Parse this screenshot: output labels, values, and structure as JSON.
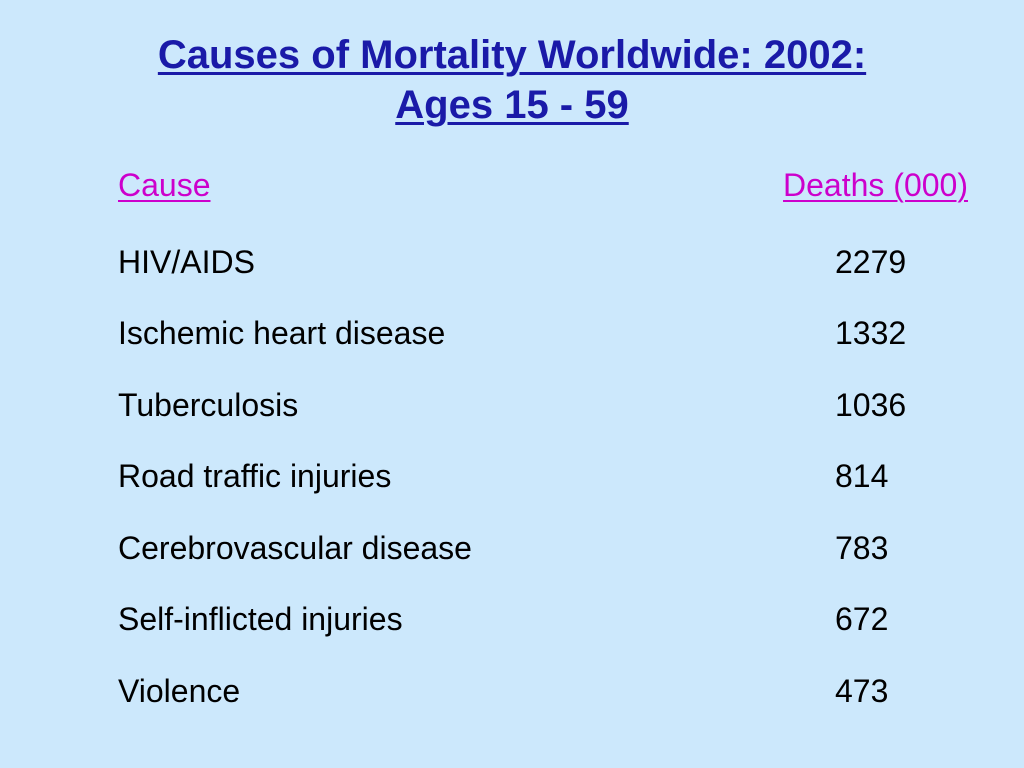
{
  "slide": {
    "title_line1": "Causes of Mortality Worldwide: 2002:",
    "title_line2": "Ages 15 - 59"
  },
  "table": {
    "columns": [
      "Cause",
      "Deaths (000)"
    ],
    "rows": [
      {
        "cause": "HIV/AIDS",
        "deaths": "2279"
      },
      {
        "cause": "Ischemic heart disease",
        "deaths": "1332"
      },
      {
        "cause": "Tuberculosis",
        "deaths": "1036"
      },
      {
        "cause": "Road traffic injuries",
        "deaths": "814"
      },
      {
        "cause": "Cerebrovascular disease",
        "deaths": "783"
      },
      {
        "cause": "Self-inflicted injuries",
        "deaths": "672"
      },
      {
        "cause": "Violence",
        "deaths": "473"
      }
    ]
  }
}
